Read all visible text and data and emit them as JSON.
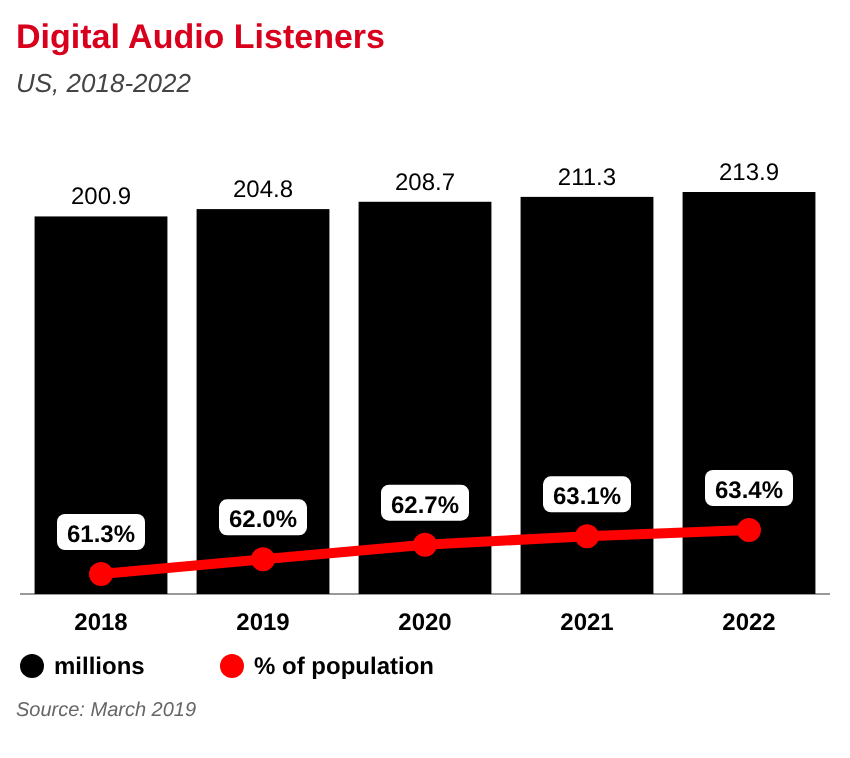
{
  "chart_data": {
    "type": "bar",
    "title": "Digital Audio Listeners",
    "subtitle": "US, 2018-2022",
    "categories": [
      "2018",
      "2019",
      "2020",
      "2021",
      "2022"
    ],
    "series": [
      {
        "name": "millions",
        "color": "#000000",
        "values": [
          200.9,
          204.8,
          208.7,
          211.3,
          213.9
        ],
        "value_labels": [
          "200.9",
          "204.8",
          "208.7",
          "211.3",
          "213.9"
        ]
      },
      {
        "name": "% of population",
        "type": "line",
        "axis": "y2",
        "color": "#ff0000",
        "marker": "circle",
        "values": [
          61.3,
          62.0,
          62.7,
          63.1,
          63.4
        ],
        "value_labels": [
          "61.3%",
          "62.0%",
          "62.7%",
          "63.1%",
          "63.4%"
        ]
      }
    ],
    "tick_labels": "x",
    "legend": "bottom left",
    "annotations": [
      "Source: March 2019"
    ]
  }
}
